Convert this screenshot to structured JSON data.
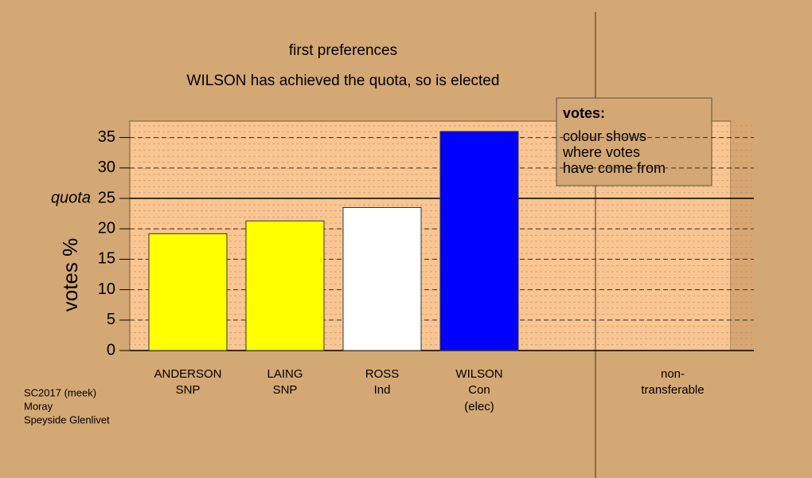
{
  "chart_data": {
    "type": "bar",
    "title": "first preferences",
    "subtitle": "WILSON has achieved the quota, so is elected",
    "y_label": "votes %",
    "categories": [
      [
        "ANDERSON",
        "SNP"
      ],
      [
        "LAING",
        "SNP"
      ],
      [
        "ROSS",
        "Ind"
      ],
      [
        "WILSON",
        "Con",
        "(elec)"
      ],
      [
        "non-",
        "transferable"
      ]
    ],
    "values": [
      19.2,
      21.3,
      23.5,
      36,
      null
    ],
    "colors": [
      "#ffff00",
      "#ffff00",
      "#ffffff",
      "#0000ff",
      null
    ],
    "ylim": [
      0,
      37.7
    ],
    "yticks": [
      0,
      5,
      10,
      15,
      20,
      25,
      30,
      35
    ],
    "grid": true,
    "quota": 25,
    "quota_label": "quota",
    "legend": {
      "title": "votes:",
      "lines": [
        "colour shows",
        "where votes",
        "have come from"
      ]
    },
    "footer": [
      "SC2017 (meek)",
      "Moray",
      "Speyside Glenlivet"
    ]
  }
}
